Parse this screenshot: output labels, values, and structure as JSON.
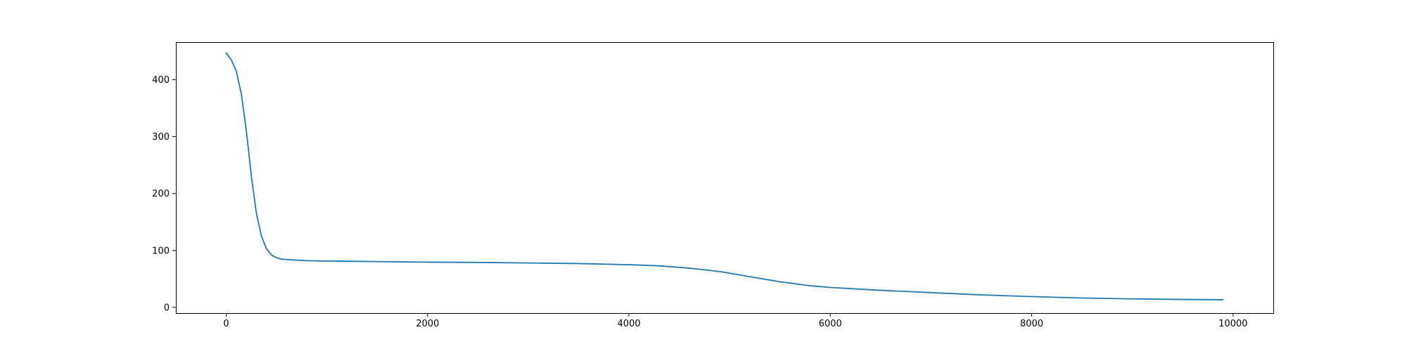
{
  "chart_data": {
    "type": "line",
    "title": "",
    "xlabel": "",
    "ylabel": "",
    "xlim": [
      -500,
      10400
    ],
    "ylim": [
      -10,
      466
    ],
    "xticks": [
      0,
      2000,
      4000,
      6000,
      8000,
      10000
    ],
    "yticks": [
      0,
      100,
      200,
      300,
      400
    ],
    "xtick_labels": [
      "0",
      "2000",
      "4000",
      "6000",
      "8000",
      "10000"
    ],
    "ytick_labels": [
      "0",
      "100",
      "200",
      "300",
      "400"
    ],
    "grid": false,
    "line_color": "#1f77b4",
    "series": [
      {
        "x": [
          0,
          50,
          100,
          150,
          200,
          250,
          300,
          350,
          400,
          450,
          500,
          550,
          600,
          700,
          800,
          1000,
          1500,
          2000,
          2500,
          3000,
          3500,
          4000,
          4300,
          4600,
          4900,
          5200,
          5500,
          5800,
          6000,
          6500,
          7000,
          7500,
          8000,
          8500,
          9000,
          9500,
          9900
        ],
        "y": [
          447,
          435,
          415,
          375,
          310,
          230,
          165,
          125,
          103,
          92,
          87,
          85,
          84,
          83,
          82,
          81.5,
          80.5,
          79.5,
          79,
          78,
          77,
          75,
          73,
          69,
          63,
          54,
          45,
          38,
          35,
          30,
          26,
          22,
          19,
          16.5,
          15,
          14,
          13.5
        ]
      }
    ]
  }
}
